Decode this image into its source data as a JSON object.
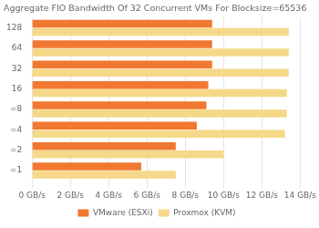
{
  "chart_data": {
    "type": "bar",
    "orientation": "horizontal",
    "title": "Aggregate FIO Bandwidth Of 32 Concurrent VMs For Blocksize=65536",
    "categories": [
      "=1",
      "=2",
      "=4",
      "=8",
      "16",
      "32",
      "64",
      "128"
    ],
    "series": [
      {
        "name": "VMware (ESXi)",
        "color": "#f07830",
        "values": [
          5.7,
          7.5,
          8.6,
          9.1,
          9.2,
          9.4,
          9.4,
          9.4
        ]
      },
      {
        "name": "Proxmox (KVM)",
        "color": "#f5d888",
        "values": [
          7.5,
          10.0,
          13.2,
          13.3,
          13.3,
          13.4,
          13.4,
          13.4
        ]
      }
    ],
    "xlim": [
      0,
      14
    ],
    "xticks": [
      {
        "value": 0,
        "label": "0 GB/s"
      },
      {
        "value": 2,
        "label": "2 GB/s"
      },
      {
        "value": 4,
        "label": "4 GB/s"
      },
      {
        "value": 6,
        "label": "6 GB/s"
      },
      {
        "value": 8,
        "label": "8 GB/s"
      },
      {
        "value": 10,
        "label": "10 GB/s"
      },
      {
        "value": 12,
        "label": "12 GB/s"
      },
      {
        "value": 14,
        "label": "14 GB/s"
      }
    ],
    "grid": "x",
    "legend": "bottom"
  }
}
